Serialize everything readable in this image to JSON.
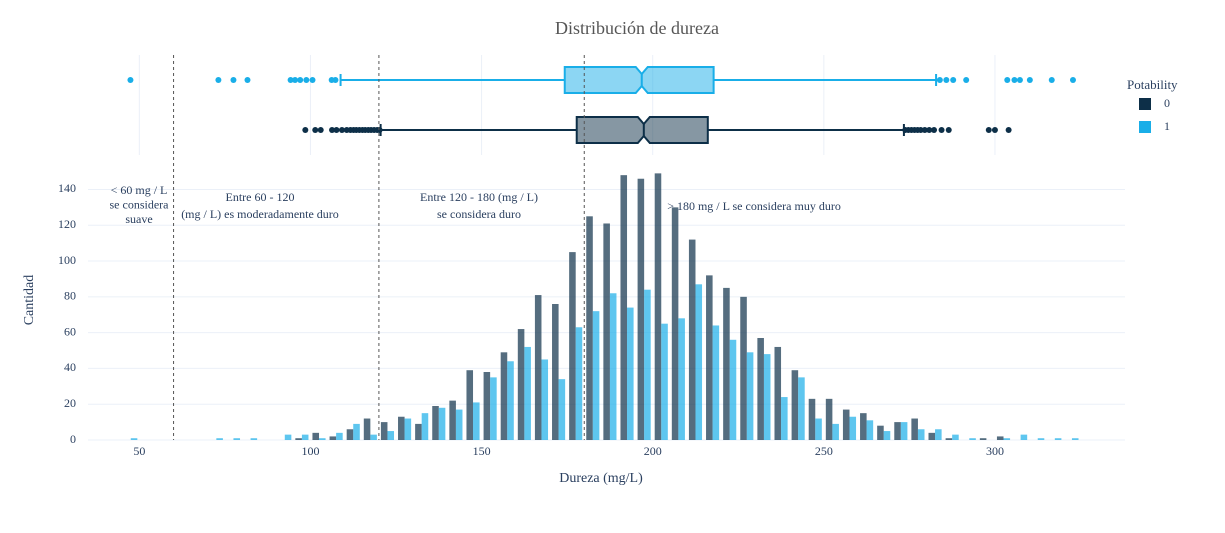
{
  "chart_data": {
    "type": "histogram",
    "title": "Distribución de dureza",
    "x_label": "Dureza (mg/L)",
    "y_label": "Cantidad",
    "legend_title": "Potability",
    "legend_position": "right",
    "grid": true,
    "xlim": [
      35,
      338
    ],
    "ylim": [
      0,
      152
    ],
    "xticks": [
      50,
      100,
      150,
      200,
      250,
      300
    ],
    "yticks": [
      0,
      20,
      40,
      60,
      80,
      100,
      120,
      140
    ],
    "reference_lines": [
      60,
      120,
      180
    ],
    "annotations": [
      [
        "< 60 mg / L",
        "se considera",
        "suave"
      ],
      [
        "Entre 60 - 120",
        "(mg / L) es moderadamente duro"
      ],
      [
        "Entre 120 - 180 (mg / L)",
        "se considera duro"
      ],
      [
        "> 180 mg / L se considera muy duro"
      ]
    ],
    "bins": [
      45,
      50,
      55,
      60,
      65,
      70,
      75,
      80,
      85,
      90,
      95,
      100,
      105,
      110,
      115,
      120,
      125,
      130,
      135,
      140,
      145,
      150,
      155,
      160,
      165,
      170,
      175,
      180,
      185,
      190,
      195,
      200,
      205,
      210,
      215,
      220,
      225,
      230,
      235,
      240,
      245,
      250,
      255,
      260,
      265,
      270,
      275,
      280,
      285,
      290,
      295,
      300,
      305,
      310,
      315,
      320,
      325
    ],
    "series": [
      {
        "name": "0",
        "color": "#0d2f48",
        "values": [
          0,
          0,
          0,
          0,
          0,
          0,
          0,
          0,
          0,
          0,
          1,
          4,
          2,
          6,
          12,
          10,
          13,
          9,
          19,
          22,
          39,
          38,
          49,
          62,
          81,
          76,
          105,
          125,
          121,
          148,
          146,
          149,
          130,
          112,
          92,
          85,
          80,
          57,
          52,
          39,
          23,
          23,
          17,
          15,
          8,
          10,
          12,
          4,
          1,
          0,
          1,
          2,
          0,
          0,
          0,
          0
        ],
        "box": {
          "lower_fence": 120.5,
          "q1": 177.8,
          "median": 197.4,
          "q3": 216.1,
          "upper_fence": 273.4,
          "outliers": [
            98.5,
            101.4,
            103,
            106.3,
            107.6,
            109.2,
            110.6,
            111.7,
            112.6,
            113.4,
            114.3,
            115.2,
            116,
            116.9,
            117.7,
            118.6,
            119.5,
            120.2,
            273.8,
            274.7,
            275.6,
            276.5,
            277.4,
            278.3,
            279.5,
            280.8,
            282.2,
            284.4,
            286.5,
            298.2,
            300,
            304
          ]
        }
      },
      {
        "name": "1",
        "color": "#19aee8",
        "values": [
          1,
          0,
          0,
          0,
          0,
          1,
          1,
          1,
          0,
          3,
          3,
          1,
          4,
          9,
          3,
          5,
          12,
          15,
          18,
          17,
          21,
          35,
          44,
          52,
          45,
          34,
          63,
          72,
          82,
          74,
          84,
          65,
          68,
          87,
          64,
          56,
          49,
          48,
          24,
          35,
          12,
          9,
          13,
          11,
          5,
          10,
          6,
          6,
          3,
          1,
          0,
          1,
          3,
          1,
          1,
          1
        ],
        "box": {
          "lower_fence": 108.8,
          "q1": 174.3,
          "median": 196.8,
          "q3": 217.8,
          "upper_fence": 282.8,
          "outliers": [
            47.4,
            73.1,
            77.5,
            81.6,
            94.2,
            95.5,
            97,
            98.8,
            100.6,
            106.2,
            107.3,
            283.9,
            285.8,
            287.8,
            291.6,
            303.6,
            305.7,
            307.3,
            310.2,
            316.6,
            322.8
          ]
        }
      }
    ]
  }
}
